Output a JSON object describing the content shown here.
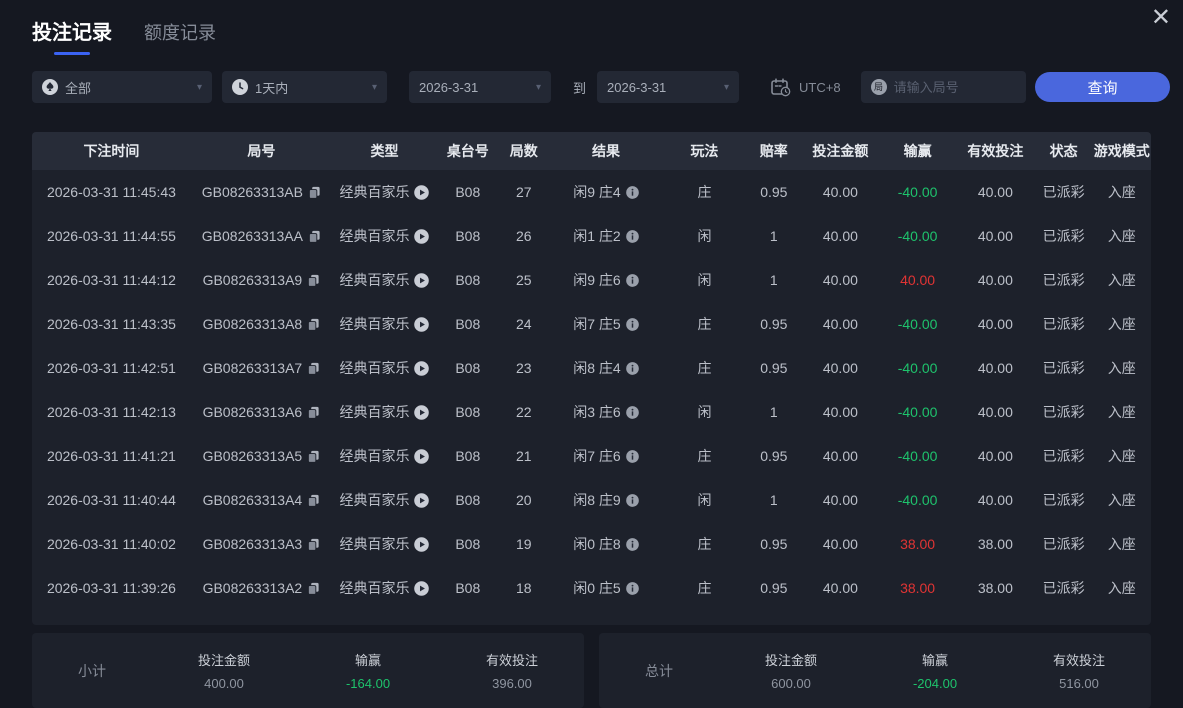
{
  "tabs": [
    {
      "label": "投注记录",
      "active": true
    },
    {
      "label": "额度记录",
      "active": false
    }
  ],
  "icons": {
    "close": "✕",
    "caret": "▾"
  },
  "filters": {
    "game_type": "全部",
    "time_range": "1天内",
    "date_from": "2026-3-31",
    "to_label": "到",
    "date_to": "2026-3-31",
    "timezone": "UTC+8",
    "search_placeholder": "请输入局号",
    "query_button": "查询"
  },
  "table": {
    "headers": [
      "下注时间",
      "局号",
      "类型",
      "桌台号",
      "局数",
      "结果",
      "玩法",
      "赔率",
      "投注金额",
      "输赢",
      "有效投注",
      "状态",
      "游戏模式"
    ],
    "rows": [
      {
        "time": "2026-03-31 11:45:43",
        "game_id": "GB08263313AB",
        "type": "经典百家乐",
        "table_no": "B08",
        "round": "27",
        "result": "闲9 庄4",
        "play": "庄",
        "odds": "0.95",
        "bet": "40.00",
        "win_loss": "-40.00",
        "valid_bet": "40.00",
        "status": "已派彩",
        "mode": "入座"
      },
      {
        "time": "2026-03-31 11:44:55",
        "game_id": "GB08263313AA",
        "type": "经典百家乐",
        "table_no": "B08",
        "round": "26",
        "result": "闲1 庄2",
        "play": "闲",
        "odds": "1",
        "bet": "40.00",
        "win_loss": "-40.00",
        "valid_bet": "40.00",
        "status": "已派彩",
        "mode": "入座"
      },
      {
        "time": "2026-03-31 11:44:12",
        "game_id": "GB08263313A9",
        "type": "经典百家乐",
        "table_no": "B08",
        "round": "25",
        "result": "闲9 庄6",
        "play": "闲",
        "odds": "1",
        "bet": "40.00",
        "win_loss": "40.00",
        "valid_bet": "40.00",
        "status": "已派彩",
        "mode": "入座"
      },
      {
        "time": "2026-03-31 11:43:35",
        "game_id": "GB08263313A8",
        "type": "经典百家乐",
        "table_no": "B08",
        "round": "24",
        "result": "闲7 庄5",
        "play": "庄",
        "odds": "0.95",
        "bet": "40.00",
        "win_loss": "-40.00",
        "valid_bet": "40.00",
        "status": "已派彩",
        "mode": "入座"
      },
      {
        "time": "2026-03-31 11:42:51",
        "game_id": "GB08263313A7",
        "type": "经典百家乐",
        "table_no": "B08",
        "round": "23",
        "result": "闲8 庄4",
        "play": "庄",
        "odds": "0.95",
        "bet": "40.00",
        "win_loss": "-40.00",
        "valid_bet": "40.00",
        "status": "已派彩",
        "mode": "入座"
      },
      {
        "time": "2026-03-31 11:42:13",
        "game_id": "GB08263313A6",
        "type": "经典百家乐",
        "table_no": "B08",
        "round": "22",
        "result": "闲3 庄6",
        "play": "闲",
        "odds": "1",
        "bet": "40.00",
        "win_loss": "-40.00",
        "valid_bet": "40.00",
        "status": "已派彩",
        "mode": "入座"
      },
      {
        "time": "2026-03-31 11:41:21",
        "game_id": "GB08263313A5",
        "type": "经典百家乐",
        "table_no": "B08",
        "round": "21",
        "result": "闲7 庄6",
        "play": "庄",
        "odds": "0.95",
        "bet": "40.00",
        "win_loss": "-40.00",
        "valid_bet": "40.00",
        "status": "已派彩",
        "mode": "入座"
      },
      {
        "time": "2026-03-31 11:40:44",
        "game_id": "GB08263313A4",
        "type": "经典百家乐",
        "table_no": "B08",
        "round": "20",
        "result": "闲8 庄9",
        "play": "闲",
        "odds": "1",
        "bet": "40.00",
        "win_loss": "-40.00",
        "valid_bet": "40.00",
        "status": "已派彩",
        "mode": "入座"
      },
      {
        "time": "2026-03-31 11:40:02",
        "game_id": "GB08263313A3",
        "type": "经典百家乐",
        "table_no": "B08",
        "round": "19",
        "result": "闲0 庄8",
        "play": "庄",
        "odds": "0.95",
        "bet": "40.00",
        "win_loss": "38.00",
        "valid_bet": "38.00",
        "status": "已派彩",
        "mode": "入座"
      },
      {
        "time": "2026-03-31 11:39:26",
        "game_id": "GB08263313A2",
        "type": "经典百家乐",
        "table_no": "B08",
        "round": "18",
        "result": "闲0 庄5",
        "play": "庄",
        "odds": "0.95",
        "bet": "40.00",
        "win_loss": "38.00",
        "valid_bet": "38.00",
        "status": "已派彩",
        "mode": "入座"
      }
    ]
  },
  "summary": {
    "subtotal": {
      "label": "小计",
      "bet_label": "投注金额",
      "bet_value": "400.00",
      "win_label": "输赢",
      "win_value": "-164.00",
      "valid_label": "有效投注",
      "valid_value": "396.00"
    },
    "total": {
      "label": "总计",
      "bet_label": "投注金额",
      "bet_value": "600.00",
      "win_label": "输赢",
      "win_value": "-204.00",
      "valid_label": "有效投注",
      "valid_value": "516.00"
    }
  },
  "colors": {
    "accent_blue": "#4a67dd",
    "loss_green": "#1ec26c",
    "win_red": "#e03434"
  }
}
